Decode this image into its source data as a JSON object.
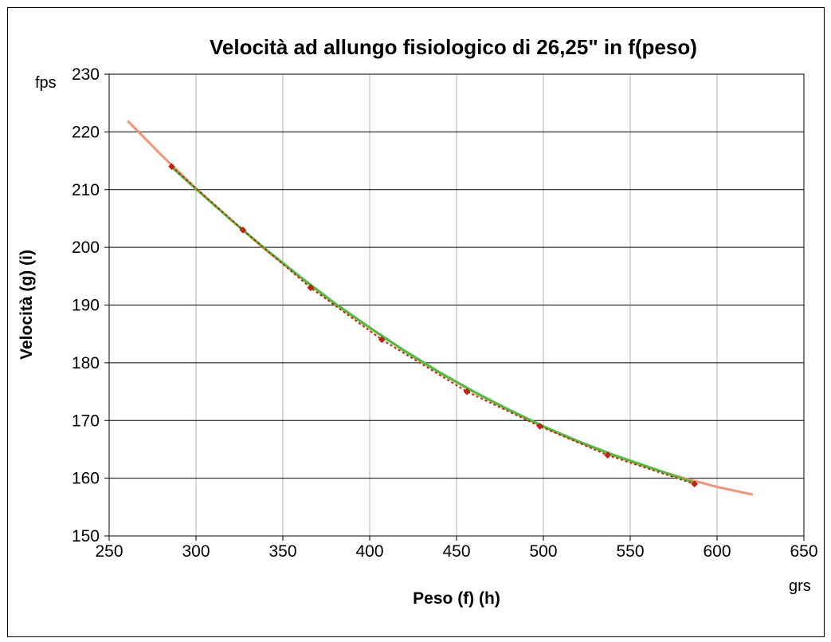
{
  "chart_data": {
    "type": "scatter",
    "title": "Velocità ad allungo fisiologico di 26,25\" in f(peso)",
    "xlabel": "Peso (f) (h)",
    "ylabel": "Velocità (g) (i)",
    "x_unit": "grs",
    "y_unit": "fps",
    "xlim": [
      250,
      650
    ],
    "ylim": [
      150,
      230
    ],
    "x_ticks": [
      250,
      300,
      350,
      400,
      450,
      500,
      550,
      600,
      650
    ],
    "y_ticks": [
      150,
      160,
      170,
      180,
      190,
      200,
      210,
      220,
      230
    ],
    "grid": true,
    "series": [
      {
        "kind": "points",
        "color": "#cc1f10",
        "x": [
          286,
          327,
          366,
          407,
          456,
          498,
          537,
          587
        ],
        "y": [
          214,
          203,
          193,
          184,
          175,
          169,
          164,
          159
        ]
      },
      {
        "kind": "line",
        "color": "#f4937a",
        "x": [
          261,
          280,
          300,
          320,
          340,
          360,
          380,
          400,
          420,
          440,
          460,
          480,
          500,
          520,
          540,
          560,
          580,
          600,
          620
        ],
        "y": [
          221.8,
          216.0,
          210.2,
          204.8,
          199.6,
          194.8,
          190.2,
          186.0,
          182.0,
          178.3,
          174.9,
          171.8,
          168.9,
          166.3,
          164.0,
          161.9,
          160.1,
          158.5,
          157.2
        ]
      },
      {
        "kind": "line",
        "color": "#47c23a",
        "x": [
          286,
          300,
          320,
          340,
          360,
          380,
          400,
          420,
          440,
          460,
          480,
          500,
          520,
          540,
          560,
          587
        ],
        "y": [
          213.9,
          210.1,
          204.8,
          199.7,
          194.9,
          190.3,
          186.1,
          182.1,
          178.4,
          175.0,
          171.9,
          169.0,
          166.4,
          164.1,
          162.0,
          159.2
        ]
      }
    ]
  }
}
